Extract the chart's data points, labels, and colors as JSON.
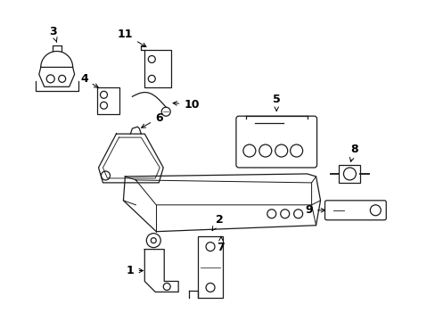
{
  "background": "#ffffff",
  "line_color": "#1a1a1a",
  "lw": 0.9,
  "figsize": [
    4.89,
    3.6
  ],
  "dpi": 100,
  "parts": {
    "label_fontsize": 9,
    "label_fontweight": "bold"
  }
}
